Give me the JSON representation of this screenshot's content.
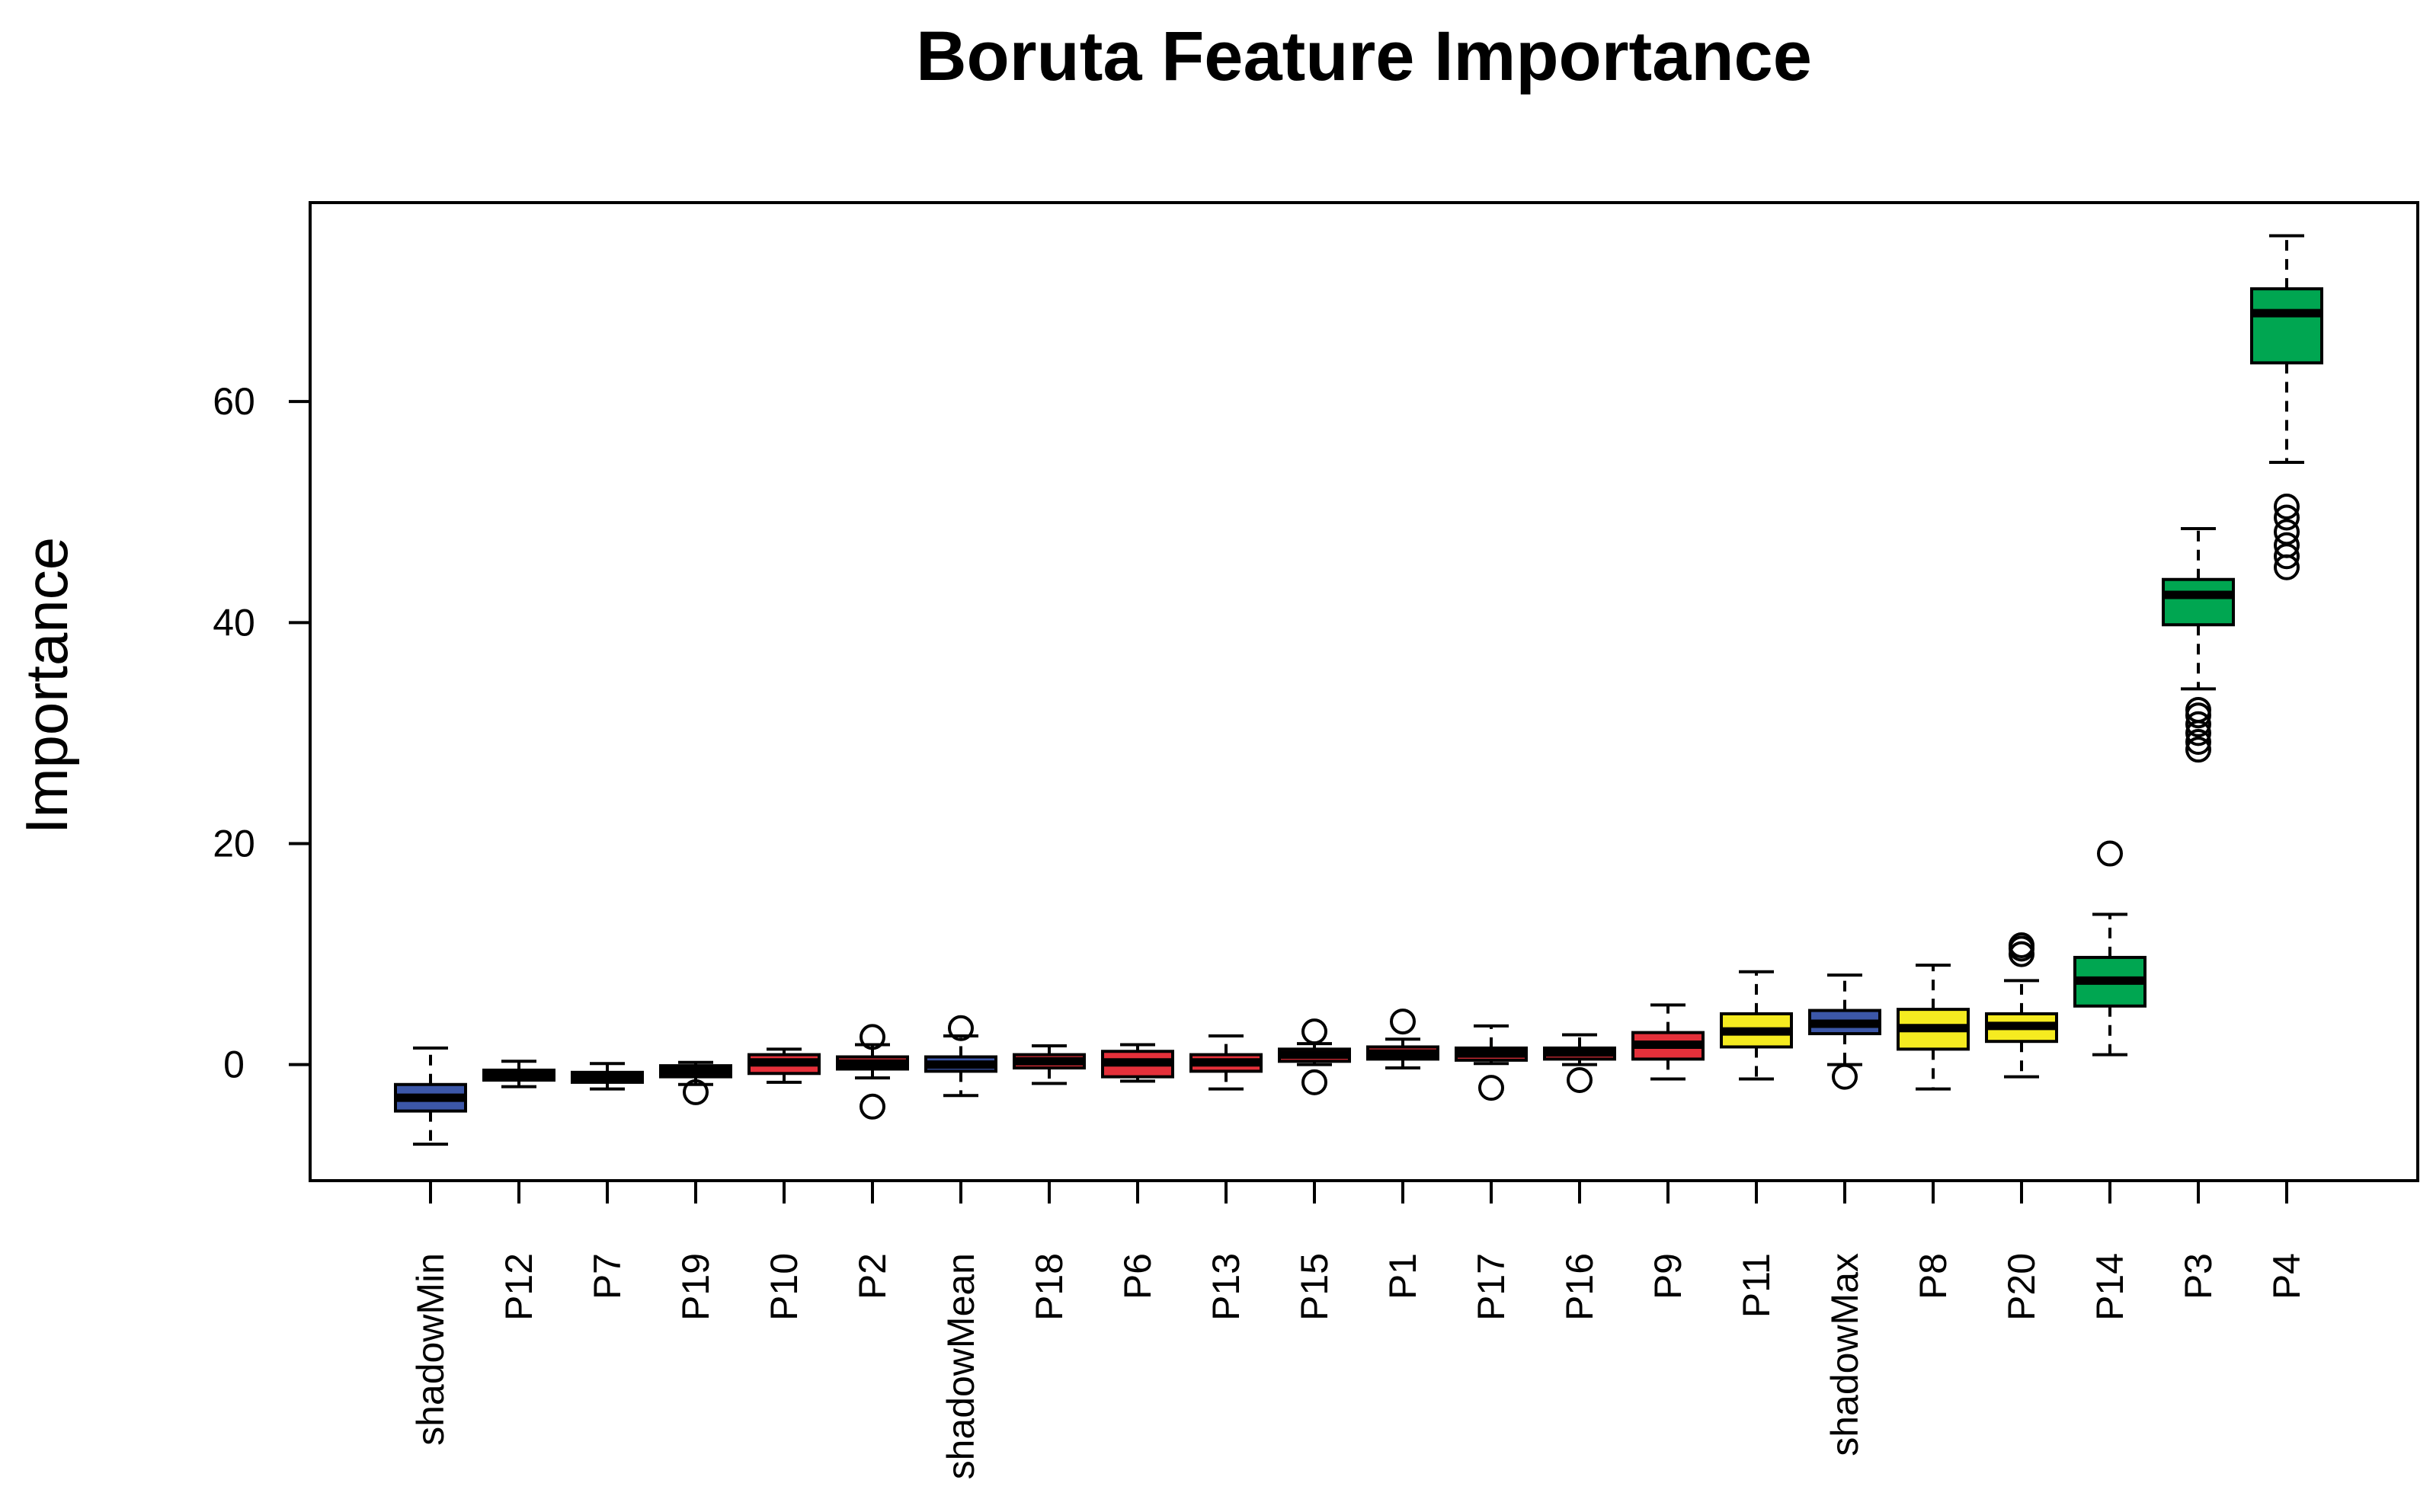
{
  "chart_data": {
    "type": "boxplot",
    "title": "Boruta Feature Importance",
    "xlabel": "",
    "ylabel": "Importance",
    "ylim": [
      -10.5,
      78
    ],
    "yticks": [
      0,
      20,
      40,
      60
    ],
    "grid": false,
    "legend": "none",
    "colors": {
      "shadow": "#3c57a8",
      "rejected": "#e5303a",
      "tentative": "#f5eb20",
      "confirmed": "#00a651",
      "median_line": "#000000"
    },
    "categories": [
      "shadowMin",
      "P12",
      "P7",
      "P19",
      "P10",
      "P2",
      "shadowMean",
      "P18",
      "P6",
      "P13",
      "P15",
      "P1",
      "P17",
      "P16",
      "P9",
      "P11",
      "shadowMax",
      "P8",
      "P20",
      "P14",
      "P3",
      "P4"
    ],
    "boxes": [
      {
        "name": "shadowMin",
        "status": "shadow",
        "min": -7.2,
        "q1": -4.2,
        "median": -3.0,
        "q3": -1.8,
        "max": 1.5,
        "outliers": []
      },
      {
        "name": "P12",
        "status": "rejected",
        "min": -2.0,
        "q1": -1.4,
        "median": -0.9,
        "q3": -0.5,
        "max": 0.3,
        "outliers": []
      },
      {
        "name": "P7",
        "status": "rejected",
        "min": -2.2,
        "q1": -1.6,
        "median": -1.1,
        "q3": -0.7,
        "max": 0.1,
        "outliers": []
      },
      {
        "name": "P19",
        "status": "rejected",
        "min": -1.8,
        "q1": -1.1,
        "median": -0.6,
        "q3": -0.1,
        "max": 0.2,
        "outliers": [
          -2.5
        ]
      },
      {
        "name": "P10",
        "status": "rejected",
        "min": -1.6,
        "q1": -0.8,
        "median": 0.2,
        "q3": 0.9,
        "max": 1.4,
        "outliers": []
      },
      {
        "name": "P2",
        "status": "rejected",
        "min": -1.2,
        "q1": -0.4,
        "median": 0.1,
        "q3": 0.7,
        "max": 1.8,
        "outliers": [
          2.5,
          -3.8
        ]
      },
      {
        "name": "shadowMean",
        "status": "shadow",
        "min": -2.8,
        "q1": -0.6,
        "median": 0.0,
        "q3": 0.7,
        "max": 2.6,
        "outliers": [
          3.3
        ]
      },
      {
        "name": "P18",
        "status": "rejected",
        "min": -1.7,
        "q1": -0.3,
        "median": 0.3,
        "q3": 0.9,
        "max": 1.7,
        "outliers": []
      },
      {
        "name": "P6",
        "status": "rejected",
        "min": -1.5,
        "q1": -1.1,
        "median": 0.2,
        "q3": 1.2,
        "max": 1.8,
        "outliers": []
      },
      {
        "name": "P13",
        "status": "rejected",
        "min": -2.2,
        "q1": -0.6,
        "median": 0.2,
        "q3": 0.9,
        "max": 2.6,
        "outliers": []
      },
      {
        "name": "P15",
        "status": "rejected",
        "min": 0.0,
        "q1": 0.3,
        "median": 0.9,
        "q3": 1.4,
        "max": 1.9,
        "outliers": [
          3.0,
          -1.6
        ]
      },
      {
        "name": "P1",
        "status": "rejected",
        "min": -0.3,
        "q1": 0.5,
        "median": 1.0,
        "q3": 1.6,
        "max": 2.3,
        "outliers": [
          3.9
        ]
      },
      {
        "name": "P17",
        "status": "rejected",
        "min": 0.1,
        "q1": 0.4,
        "median": 1.0,
        "q3": 1.5,
        "max": 3.5,
        "outliers": [
          -2.1
        ]
      },
      {
        "name": "P16",
        "status": "rejected",
        "min": 0.0,
        "q1": 0.5,
        "median": 1.1,
        "q3": 1.5,
        "max": 2.7,
        "outliers": [
          -1.4
        ]
      },
      {
        "name": "P9",
        "status": "rejected",
        "min": -1.3,
        "q1": 0.5,
        "median": 1.8,
        "q3": 2.9,
        "max": 5.4,
        "outliers": []
      },
      {
        "name": "P11",
        "status": "tentative",
        "min": -1.3,
        "q1": 1.6,
        "median": 3.0,
        "q3": 4.6,
        "max": 8.4,
        "outliers": []
      },
      {
        "name": "shadowMax",
        "status": "shadow",
        "min": 0.0,
        "q1": 2.8,
        "median": 3.7,
        "q3": 4.9,
        "max": 8.1,
        "outliers": [
          -1.1
        ]
      },
      {
        "name": "P8",
        "status": "tentative",
        "min": -2.2,
        "q1": 1.4,
        "median": 3.3,
        "q3": 5.0,
        "max": 9.0,
        "outliers": []
      },
      {
        "name": "P20",
        "status": "tentative",
        "min": -1.1,
        "q1": 2.1,
        "median": 3.5,
        "q3": 4.6,
        "max": 7.6,
        "outliers": [
          10.0,
          10.5,
          10.8
        ]
      },
      {
        "name": "P14",
        "status": "confirmed",
        "min": 0.9,
        "q1": 5.3,
        "median": 7.6,
        "q3": 9.7,
        "max": 13.6,
        "outliers": [
          19.1
        ]
      },
      {
        "name": "P3",
        "status": "confirmed",
        "min": 34.0,
        "q1": 39.8,
        "median": 42.5,
        "q3": 43.9,
        "max": 48.5,
        "outliers": [
          28.5,
          29.2,
          30.0,
          30.8,
          31.6,
          32.1
        ]
      },
      {
        "name": "P4",
        "status": "confirmed",
        "min": 54.5,
        "q1": 63.5,
        "median": 68.0,
        "q3": 70.2,
        "max": 75.0,
        "outliers": [
          45.0,
          46.0,
          47.0,
          48.2,
          49.5,
          50.5
        ]
      }
    ]
  }
}
